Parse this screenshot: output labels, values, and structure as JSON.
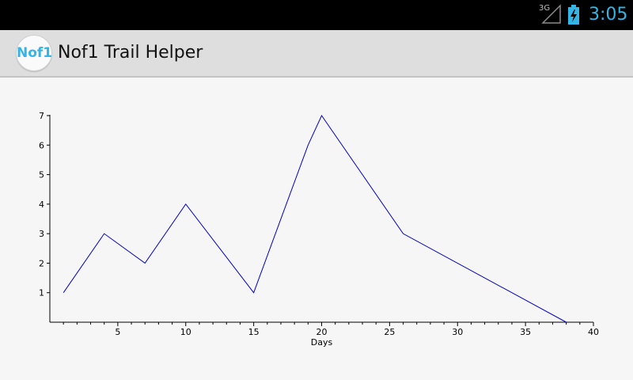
{
  "status_bar": {
    "network_label": "3G",
    "network_icon": "signal-icon",
    "battery_icon": "battery-charging-icon",
    "time": "3:05",
    "time_color": "#33b5e5"
  },
  "action_bar": {
    "icon_text": "Nof1",
    "title": "Nof1 Trail Helper",
    "icon_color": "#33b5e5"
  },
  "chart_data": {
    "type": "line",
    "title": "",
    "xlabel": "Days",
    "ylabel": "",
    "xlim": [
      0,
      40
    ],
    "ylim": [
      0,
      7
    ],
    "x_ticks": [
      5,
      10,
      15,
      20,
      25,
      30,
      35,
      40
    ],
    "y_ticks": [
      1,
      2,
      3,
      4,
      5,
      6,
      7
    ],
    "grid": false,
    "series": [
      {
        "color": "#0000cc",
        "x": [
          1,
          4,
          7,
          10,
          15,
          19,
          20,
          26,
          38
        ],
        "y": [
          1,
          3,
          2,
          4,
          1,
          6,
          7,
          3,
          0
        ]
      }
    ]
  }
}
